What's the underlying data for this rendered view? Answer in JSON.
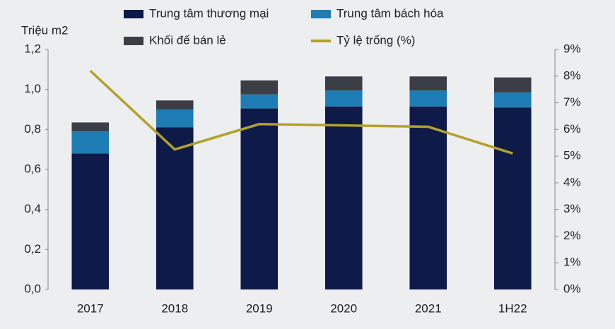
{
  "chart_data": {
    "type": "bar",
    "stacked": true,
    "y_label": "Triệu m2",
    "categories": [
      "2017",
      "2018",
      "2019",
      "2020",
      "2021",
      "1H22"
    ],
    "series": [
      {
        "name": "Trung tâm thương mại",
        "color": "#0e1a48",
        "values": [
          0.68,
          0.81,
          0.905,
          0.915,
          0.915,
          0.91
        ]
      },
      {
        "name": "Trung tâm bách hóa",
        "color": "#1f7db5",
        "values": [
          0.11,
          0.09,
          0.07,
          0.08,
          0.08,
          0.075
        ]
      },
      {
        "name": "Khối đế bán lẻ",
        "color": "#3b3e44",
        "values": [
          0.045,
          0.045,
          0.07,
          0.07,
          0.07,
          0.075
        ]
      },
      {
        "name": "Tỷ lệ trống (%)",
        "color": "#b3a12c",
        "type": "line",
        "axis": "y2",
        "values": [
          8.2,
          5.25,
          6.2,
          6.15,
          6.1,
          5.1
        ]
      }
    ],
    "ylim": [
      0,
      1.2
    ],
    "yticks": [
      {
        "value": 0,
        "label": "0,0"
      },
      {
        "value": 0.2,
        "label": "0,2"
      },
      {
        "value": 0.4,
        "label": "0,4"
      },
      {
        "value": 0.6,
        "label": "0,6"
      },
      {
        "value": 0.8,
        "label": "0,8"
      },
      {
        "value": 1.0,
        "label": "1,0"
      },
      {
        "value": 1.2,
        "label": "1,2"
      }
    ],
    "y2lim": [
      0,
      9
    ],
    "y2ticks": [
      {
        "value": 0,
        "label": "0%"
      },
      {
        "value": 1,
        "label": "1%"
      },
      {
        "value": 2,
        "label": "2%"
      },
      {
        "value": 3,
        "label": "3%"
      },
      {
        "value": 4,
        "label": "4%"
      },
      {
        "value": 5,
        "label": "5%"
      },
      {
        "value": 6,
        "label": "6%"
      },
      {
        "value": 7,
        "label": "7%"
      },
      {
        "value": 8,
        "label": "8%"
      },
      {
        "value": 9,
        "label": "9%"
      }
    ],
    "grid": false
  }
}
